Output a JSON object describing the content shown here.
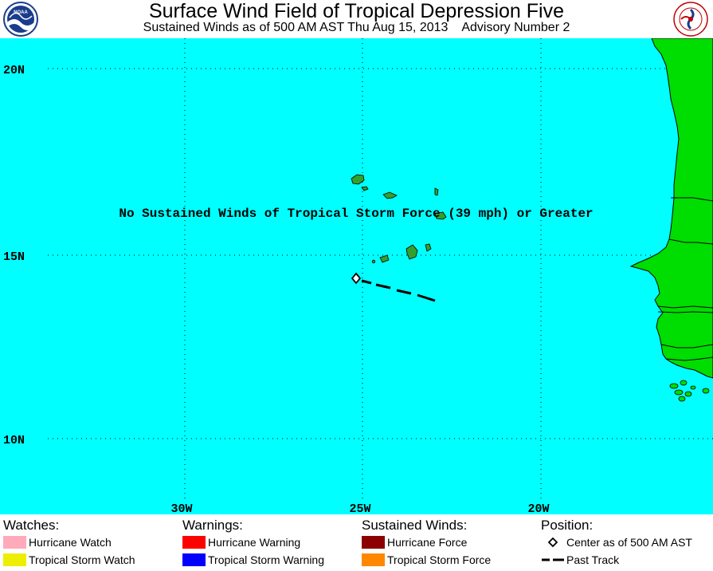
{
  "header": {
    "title": "Surface Wind Field of Tropical Depression Five",
    "subtitle": "Sustained Winds as of 500 AM AST Thu Aug 15, 2013    Advisory Number 2",
    "logo_left": "NOAA",
    "logo_right": "NATIONAL WEATHER SERVICE"
  },
  "map": {
    "ocean_color": "#00ffff",
    "land_color": "#00dd00",
    "island_color": "#33a02c",
    "lat_labels": [
      "20N",
      "15N",
      "10N"
    ],
    "lon_labels": [
      "30W",
      "25W",
      "20W"
    ],
    "message": "No Sustained Winds of Tropical Storm Force (39 mph) or Greater"
  },
  "legend": {
    "watches": {
      "heading": "Watches:",
      "items": [
        {
          "label": "Hurricane Watch",
          "color": "#ffaabb"
        },
        {
          "label": "Tropical Storm Watch",
          "color": "#eeee00"
        }
      ]
    },
    "warnings": {
      "heading": "Warnings:",
      "items": [
        {
          "label": "Hurricane Warning",
          "color": "#ff0000"
        },
        {
          "label": "Tropical Storm Warning",
          "color": "#0000ff"
        }
      ]
    },
    "winds": {
      "heading": "Sustained Winds:",
      "items": [
        {
          "label": "Hurricane Force",
          "color": "#8b0000"
        },
        {
          "label": "Tropical Storm Force",
          "color": "#ff8800"
        }
      ]
    },
    "position": {
      "heading": "Position:",
      "items": [
        {
          "label": "Center as of 500 AM AST",
          "icon": "diamond-icon"
        },
        {
          "label": "Past Track",
          "icon": "dashed-line-icon"
        }
      ]
    }
  }
}
